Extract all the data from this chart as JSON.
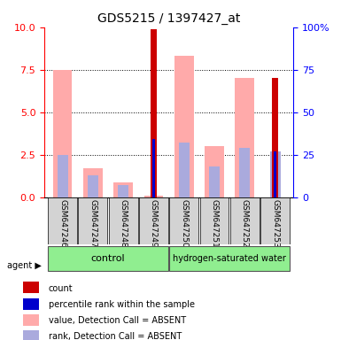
{
  "title": "GDS5215 / 1397427_at",
  "samples": [
    "GSM647246",
    "GSM647247",
    "GSM647248",
    "GSM647249",
    "GSM647250",
    "GSM647251",
    "GSM647252",
    "GSM647253"
  ],
  "groups": [
    "control",
    "control",
    "control",
    "control",
    "hydrogen-saturated water",
    "hydrogen-saturated water",
    "hydrogen-saturated water",
    "hydrogen-saturated water"
  ],
  "group_colors": {
    "control": "#90ee90",
    "hydrogen-saturated water": "#90ee90"
  },
  "value_absent": [
    7.5,
    1.7,
    0.85,
    0.1,
    8.3,
    3.0,
    7.0,
    null
  ],
  "rank_absent": [
    2.5,
    1.3,
    0.7,
    null,
    3.2,
    1.8,
    2.9,
    2.7
  ],
  "count": [
    null,
    null,
    null,
    9.9,
    null,
    null,
    null,
    7.0
  ],
  "percentile_rank": [
    null,
    null,
    null,
    3.4,
    null,
    null,
    null,
    2.7
  ],
  "ylim": [
    0,
    10
  ],
  "yticks_left": [
    0,
    2.5,
    5,
    7.5,
    10
  ],
  "yticks_right": [
    0,
    25,
    50,
    75,
    100
  ],
  "bar_width": 0.35,
  "count_color": "#cc0000",
  "percentile_color": "#0000cc",
  "value_absent_color": "#ffaaaa",
  "rank_absent_color": "#aaaadd",
  "grid_color": "black",
  "background_plot": "#ffffff",
  "tick_label_area_color": "#d3d3d3",
  "legend_items": [
    {
      "label": "count",
      "color": "#cc0000"
    },
    {
      "label": "percentile rank within the sample",
      "color": "#0000cc"
    },
    {
      "label": "value, Detection Call = ABSENT",
      "color": "#ffaaaa"
    },
    {
      "label": "rank, Detection Call = ABSENT",
      "color": "#aaaadd"
    }
  ]
}
